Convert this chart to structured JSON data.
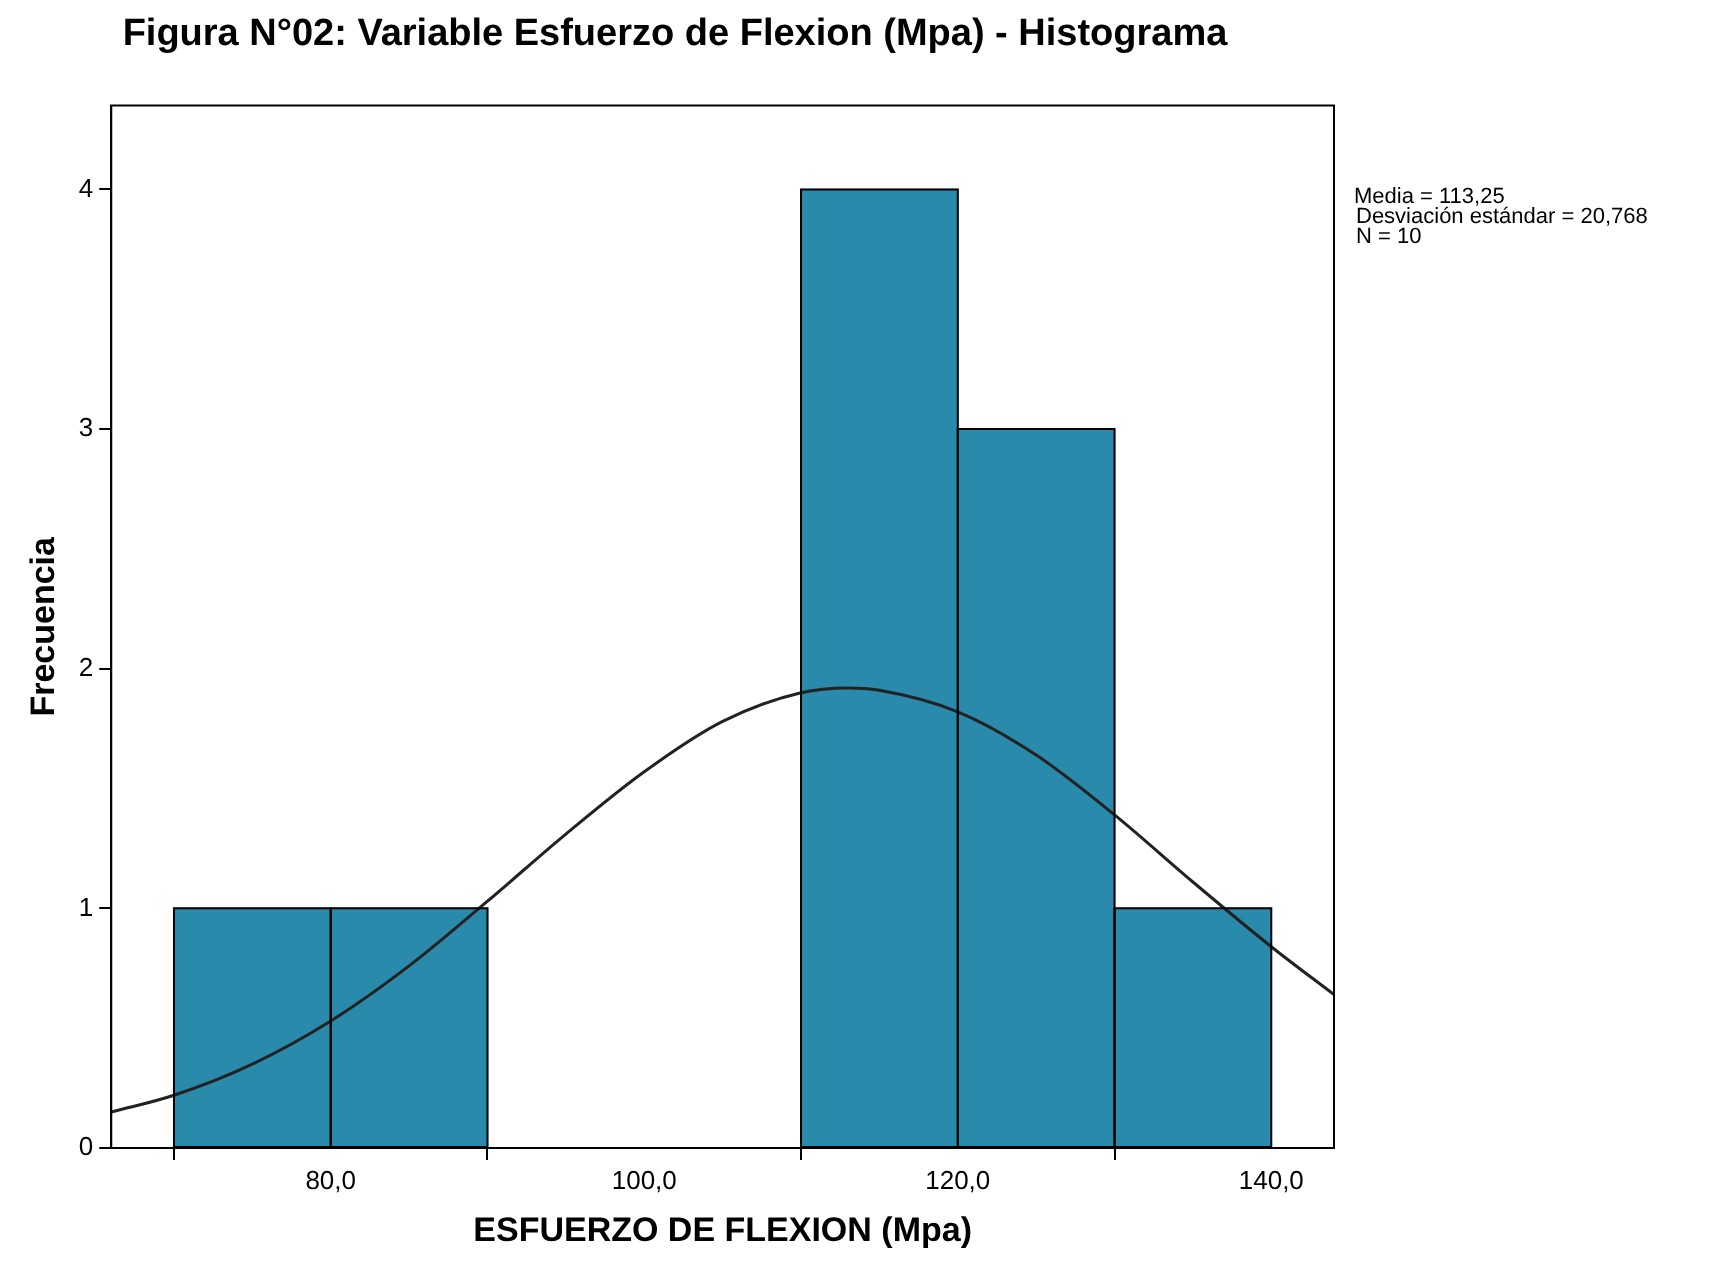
{
  "chart_data": {
    "type": "histogram",
    "title": "Figura N°02: Variable Esfuerzo de Flexion (Mpa) - Histograma",
    "xlabel": "ESFUERZO DE FLEXION (Mpa)",
    "ylabel": "Frecuencia",
    "bins": [
      70,
      80,
      90,
      100,
      110,
      120,
      130,
      140
    ],
    "values": [
      1,
      1,
      0,
      0,
      4,
      3,
      1
    ],
    "color": "#2a8aab",
    "series": [
      {
        "type": "line",
        "color": "#222222",
        "x": [
          66,
          70,
          75,
          80,
          85,
          90,
          95,
          100,
          105,
          110,
          113,
          115,
          120,
          125,
          130,
          135,
          140,
          144
        ],
        "values": [
          0.15,
          0.22,
          0.35,
          0.53,
          0.76,
          1.03,
          1.31,
          1.57,
          1.78,
          1.9,
          1.92,
          1.91,
          1.82,
          1.64,
          1.39,
          1.11,
          0.84,
          0.64
        ]
      }
    ],
    "xlim": [
      66,
      144
    ],
    "xticks": [
      {
        "value": 80,
        "label": "80,0"
      },
      {
        "value": 100,
        "label": "100,0"
      },
      {
        "value": 120,
        "label": "120,0"
      },
      {
        "value": 140,
        "label": "140,0"
      }
    ],
    "ylim": [
      0,
      4.35
    ],
    "yticks": [
      0,
      1,
      2,
      3,
      4
    ],
    "grid": false,
    "legend": false,
    "annotations": [
      "Media = 113,25",
      "Desviación estándar = 20,768",
      "N = 10"
    ]
  }
}
